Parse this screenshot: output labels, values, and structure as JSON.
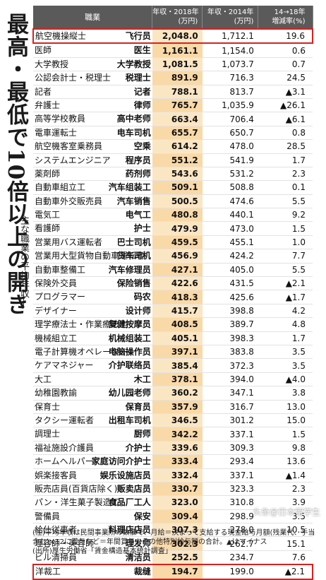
{
  "side_title": "最高・最低で10倍以上の開き",
  "side_subtitle": "—主な職業の平均年収—",
  "headers": {
    "job": "職業",
    "y2018": "年収・2018年",
    "y2018_unit": "(万円)",
    "y2014": "年収・2014年",
    "y2014_unit": "(万円)",
    "rate": "14→18年",
    "rate_sub": "増減率(%)"
  },
  "rows": [
    {
      "jp": "航空機操縦士",
      "cn": "飞行员",
      "y2018": "2,048.0",
      "y2014": "1,712.1",
      "rate": "19.6",
      "boxed": true
    },
    {
      "jp": "医師",
      "cn": "医生",
      "y2018": "1,161.1",
      "y2014": "1,154.0",
      "rate": "0.6"
    },
    {
      "jp": "大学教授",
      "cn": "大学教授",
      "y2018": "1,081.5",
      "y2014": "1,073.7",
      "rate": "0.7"
    },
    {
      "jp": "公認会計士・税理士",
      "cn": "税理士",
      "y2018": "891.9",
      "y2014": "716.3",
      "rate": "24.5"
    },
    {
      "jp": "記者",
      "cn": "记者",
      "y2018": "788.1",
      "y2014": "813.7",
      "rate": "▲3.1"
    },
    {
      "jp": "弁護士",
      "cn": "律师",
      "y2018": "765.7",
      "y2014": "1,035.9",
      "rate": "▲26.1"
    },
    {
      "jp": "高等学校教員",
      "cn": "高中老师",
      "y2018": "663.4",
      "y2014": "706.4",
      "rate": "▲6.1"
    },
    {
      "jp": "電車運転士",
      "cn": "电车司机",
      "y2018": "655.7",
      "y2014": "650.7",
      "rate": "0.8"
    },
    {
      "jp": "航空機客室乗務員",
      "cn": "空乘",
      "y2018": "614.2",
      "y2014": "478.0",
      "rate": "28.5"
    },
    {
      "jp": "システムエンジニア",
      "cn": "程序员",
      "y2018": "551.2",
      "y2014": "541.9",
      "rate": "1.7"
    },
    {
      "jp": "薬剤師",
      "cn": "药剂师",
      "y2018": "543.6",
      "y2014": "531.2",
      "rate": "2.3"
    },
    {
      "jp": "自動車組立工",
      "cn": "汽车组装工",
      "y2018": "509.1",
      "y2014": "508.8",
      "rate": "0.1"
    },
    {
      "jp": "自動車外交販売員",
      "cn": "汽车销售",
      "y2018": "500.5",
      "y2014": "474.6",
      "rate": "5.5"
    },
    {
      "jp": "電気工",
      "cn": "电气工",
      "y2018": "480.8",
      "y2014": "440.1",
      "rate": "9.2"
    },
    {
      "jp": "看護師",
      "cn": "护士",
      "y2018": "479.9",
      "y2014": "473.0",
      "rate": "1.5"
    },
    {
      "jp": "営業用バス運転者",
      "cn": "巴士司机",
      "y2018": "459.5",
      "y2014": "455.1",
      "rate": "1.0"
    },
    {
      "jp": "営業用大型貨物自動車運転者",
      "cn": "货车司机",
      "y2018": "456.9",
      "y2014": "424.2",
      "rate": "7.7"
    },
    {
      "jp": "自動車整備工",
      "cn": "汽车修理员",
      "y2018": "427.1",
      "y2014": "405.0",
      "rate": "5.5"
    },
    {
      "jp": "保険外交員",
      "cn": "保险销售",
      "y2018": "422.6",
      "y2014": "431.5",
      "rate": "▲2.1"
    },
    {
      "jp": "プログラマー",
      "cn": "码农",
      "y2018": "418.3",
      "y2014": "425.6",
      "rate": "▲1.7"
    },
    {
      "jp": "デザイナー",
      "cn": "设计师",
      "y2018": "415.7",
      "y2014": "398.8",
      "rate": "4.2"
    },
    {
      "jp": "理学療法士・作業療法士",
      "cn": "复健按摩员",
      "y2018": "408.5",
      "y2014": "389.7",
      "rate": "4.8"
    },
    {
      "jp": "機械組立工",
      "cn": "机械组装工",
      "y2018": "405.1",
      "y2014": "398.3",
      "rate": "1.7"
    },
    {
      "jp": "電子計算機オペレーター",
      "cn": "电脑操作员",
      "y2018": "397.1",
      "y2014": "383.8",
      "rate": "3.5"
    },
    {
      "jp": "ケアマネジャー",
      "cn": "介护联络员",
      "y2018": "385.4",
      "y2014": "372.3",
      "rate": "3.5"
    },
    {
      "jp": "大工",
      "cn": "木工",
      "y2018": "378.1",
      "y2014": "394.0",
      "rate": "▲4.0"
    },
    {
      "jp": "幼稚園教諭",
      "cn": "幼儿园老师",
      "y2018": "360.2",
      "y2014": "347.1",
      "rate": "3.8"
    },
    {
      "jp": "保育士",
      "cn": "保育员",
      "y2018": "357.9",
      "y2014": "316.7",
      "rate": "13.0"
    },
    {
      "jp": "タクシー運転者",
      "cn": "出租车司机",
      "y2018": "346.5",
      "y2014": "301.2",
      "rate": "15.0"
    },
    {
      "jp": "調理士",
      "cn": "厨师",
      "y2018": "342.2",
      "y2014": "337.1",
      "rate": "1.5"
    },
    {
      "jp": "福祉施設介護員",
      "cn": "介护士",
      "y2018": "339.6",
      "y2014": "309.3",
      "rate": "9.8"
    },
    {
      "jp": "ホームヘルパー",
      "cn": "家庭访问介护士",
      "y2018": "333.4",
      "y2014": "293.4",
      "rate": "13.6"
    },
    {
      "jp": "娯楽接客員",
      "cn": "娱乐设施店员",
      "y2018": "332.4",
      "y2014": "337.1",
      "rate": "▲1.4"
    },
    {
      "jp": "販売店員(百貨店除く)",
      "cn": "贩卖店员",
      "y2018": "330.7",
      "y2014": "323.3",
      "rate": "2.3"
    },
    {
      "jp": "パン・洋生菓子製造工",
      "cn": "食品厂工人",
      "y2018": "323.0",
      "y2014": "310.8",
      "rate": "3.9"
    },
    {
      "jp": "警備員",
      "cn": "保安",
      "y2018": "309.4",
      "y2014": "298.9",
      "rate": "3.5"
    },
    {
      "jp": "給仕従事者",
      "cn": "料理店店员",
      "y2018": "307.3",
      "y2014": "278.0",
      "rate": "10.5"
    },
    {
      "jp": "理容師・美容師",
      "cn": "理发师",
      "y2018": "302.3",
      "y2014": "262.7",
      "rate": "15.1"
    },
    {
      "jp": "ビル清掃員",
      "cn": "清洁员",
      "y2018": "252.5",
      "y2014": "234.7",
      "rate": "7.6"
    },
    {
      "jp": "洋裁工",
      "cn": "裁缝",
      "y2018": "194.7",
      "y2014": "199.0",
      "rate": "▲2.1",
      "boxed": true
    }
  ],
  "notes": [
    "(注)平均年収は民間事業所の数値で、月給＝決まって支給する現金給与月額(残業代、手当含む)×12に賞与など＝年間賞与、その他特別給与額の合計。▲はマイナス",
    "(出所)厚生労働省「賃金構造基本統計調査」"
  ],
  "watermark": "头条@日本留学生"
}
